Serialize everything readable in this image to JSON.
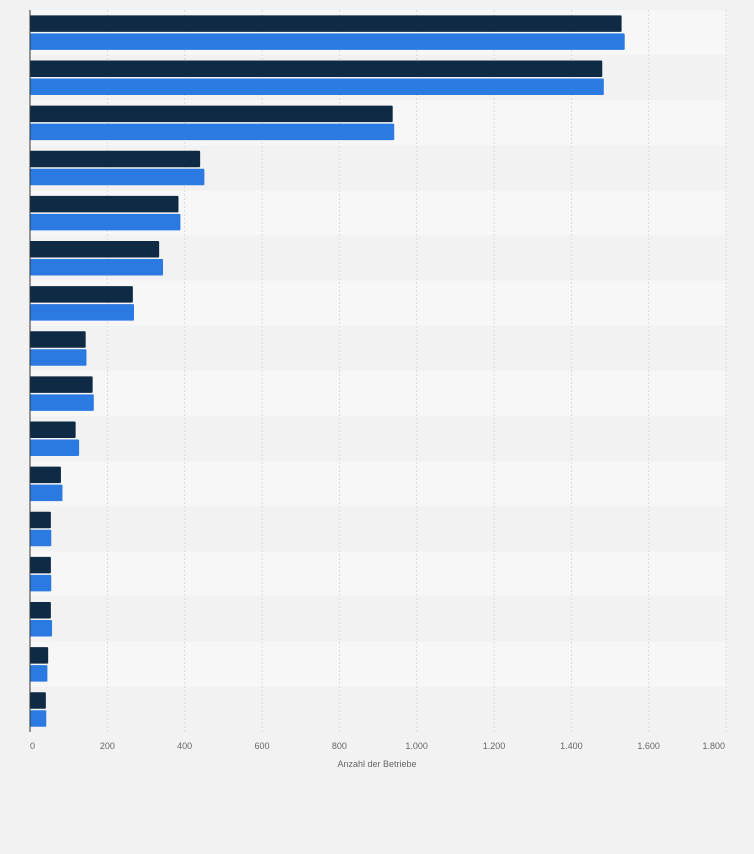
{
  "chart_data": {
    "type": "bar",
    "orientation": "horizontal",
    "categories": [
      "",
      "",
      "",
      "",
      "",
      "",
      "",
      "",
      "",
      "",
      "",
      "",
      "",
      "",
      "",
      ""
    ],
    "series": [
      {
        "color": "#0f2a44",
        "values": [
          1530,
          1480,
          938,
          440,
          384,
          334,
          266,
          144,
          162,
          118,
          80,
          54,
          54,
          54,
          47,
          41
        ]
      },
      {
        "color": "#2a7ae2",
        "values": [
          1538,
          1484,
          942,
          451,
          389,
          344,
          269,
          146,
          165,
          127,
          84,
          55,
          55,
          57,
          45,
          42
        ]
      }
    ],
    "xlim": [
      0,
      1800
    ],
    "xticks": [
      0,
      200,
      400,
      600,
      800,
      1000,
      1200,
      1400,
      1600,
      1800
    ],
    "xtick_labels": [
      "0",
      "200",
      "400",
      "600",
      "800",
      "1.000",
      "1.200",
      "1.400",
      "1.600",
      "1.800"
    ],
    "xlabel": "Anzahl der Betriebe",
    "grid": true,
    "legend": "none"
  }
}
